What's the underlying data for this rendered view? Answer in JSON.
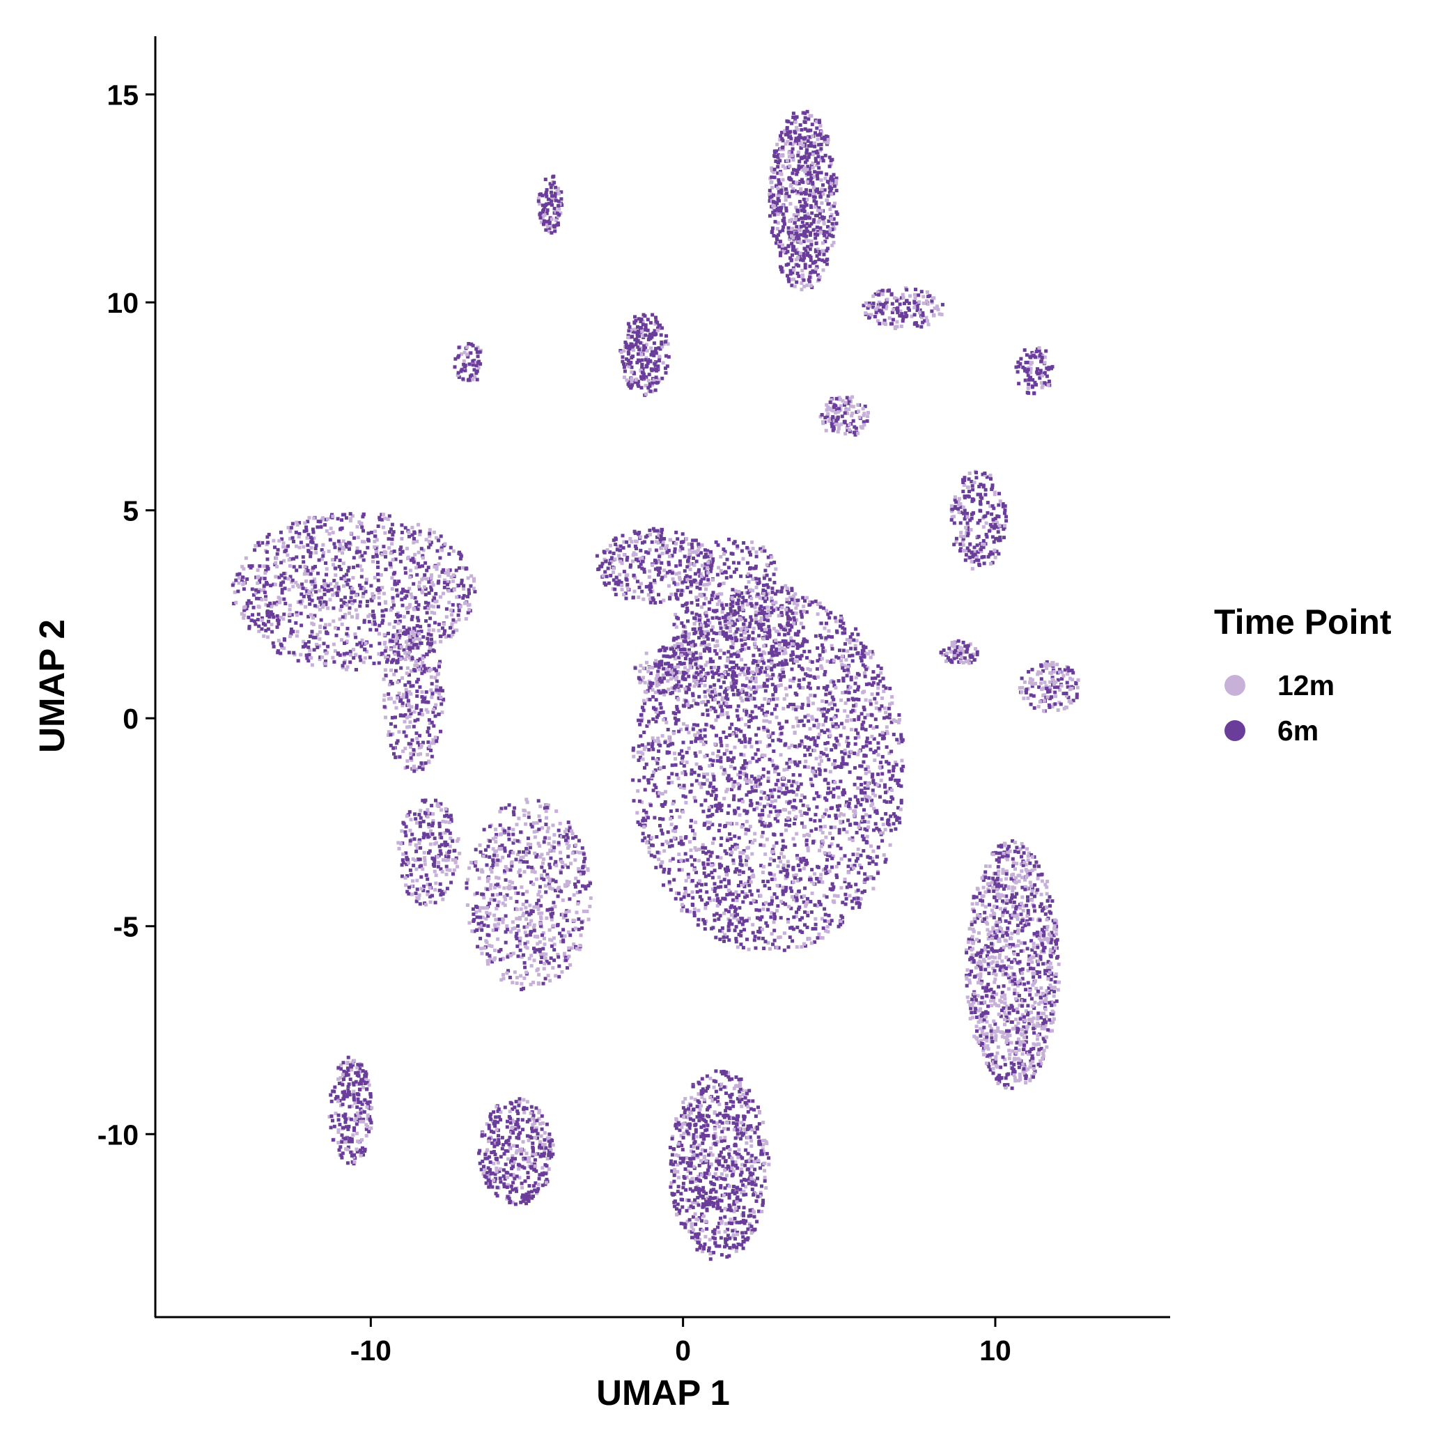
{
  "chart_data": {
    "type": "scatter",
    "title": "",
    "xlabel": "UMAP 1",
    "ylabel": "UMAP 2",
    "xlim": [
      -16.9,
      15.6
    ],
    "ylim": [
      -14.4,
      16.4
    ],
    "x_ticks": [
      -10,
      0,
      10
    ],
    "x_tick_labels": [
      "-10",
      "0",
      "10"
    ],
    "y_ticks": [
      -10,
      -5,
      0,
      5,
      10,
      15
    ],
    "y_tick_labels": [
      "-10",
      "-5",
      "0",
      "5",
      "10",
      "15"
    ],
    "grid": false,
    "legend": {
      "title": "Time Point",
      "placement": "right",
      "entries": [
        {
          "label": "12m",
          "color": "#c7b1d9"
        },
        {
          "label": "6m",
          "color": "#6a3d9a"
        }
      ]
    },
    "series": [
      {
        "name": "12m",
        "color": "#c7b1d9"
      },
      {
        "name": "6m",
        "color": "#6a3d9a"
      }
    ],
    "clusters": [
      {
        "center": [
          2.7,
          -1.2
        ],
        "radius": [
          4.4,
          4.4
        ],
        "points": 2600,
        "share_12m": 0.32
      },
      {
        "center": [
          1.6,
          2.4
        ],
        "radius": [
          2.0,
          2.0
        ],
        "points": 500,
        "share_12m": 0.3
      },
      {
        "center": [
          -1.0,
          3.7
        ],
        "radius": [
          1.9,
          0.9
        ],
        "points": 320,
        "share_12m": 0.35
      },
      {
        "center": [
          -10.6,
          3.1
        ],
        "radius": [
          3.9,
          1.9
        ],
        "points": 1100,
        "share_12m": 0.4
      },
      {
        "center": [
          -8.7,
          0.5
        ],
        "radius": [
          1.0,
          1.8
        ],
        "points": 300,
        "share_12m": 0.4
      },
      {
        "center": [
          3.8,
          12.5
        ],
        "radius": [
          1.1,
          2.2
        ],
        "points": 700,
        "share_12m": 0.28
      },
      {
        "center": [
          7.0,
          9.9
        ],
        "radius": [
          1.3,
          0.5
        ],
        "points": 160,
        "share_12m": 0.4
      },
      {
        "center": [
          10.5,
          -5.9
        ],
        "radius": [
          1.5,
          3.0
        ],
        "points": 1100,
        "share_12m": 0.5
      },
      {
        "center": [
          1.1,
          -10.7
        ],
        "radius": [
          1.6,
          2.3
        ],
        "points": 800,
        "share_12m": 0.3
      },
      {
        "center": [
          -5.4,
          -10.4
        ],
        "radius": [
          1.2,
          1.3
        ],
        "points": 380,
        "share_12m": 0.3
      },
      {
        "center": [
          -5.0,
          -4.2
        ],
        "radius": [
          2.0,
          2.3
        ],
        "points": 650,
        "share_12m": 0.55
      },
      {
        "center": [
          -8.2,
          -3.2
        ],
        "radius": [
          1.0,
          1.3
        ],
        "points": 230,
        "share_12m": 0.4
      },
      {
        "center": [
          -10.7,
          -9.4
        ],
        "radius": [
          0.7,
          1.3
        ],
        "points": 240,
        "share_12m": 0.3
      },
      {
        "center": [
          -1.3,
          8.8
        ],
        "radius": [
          0.8,
          1.0
        ],
        "points": 240,
        "share_12m": 0.2
      },
      {
        "center": [
          5.1,
          7.3
        ],
        "radius": [
          0.8,
          0.5
        ],
        "points": 120,
        "share_12m": 0.6
      },
      {
        "center": [
          9.4,
          4.8
        ],
        "radius": [
          0.9,
          1.2
        ],
        "points": 220,
        "share_12m": 0.3
      },
      {
        "center": [
          11.7,
          0.8
        ],
        "radius": [
          1.0,
          0.6
        ],
        "points": 140,
        "share_12m": 0.5
      },
      {
        "center": [
          11.2,
          8.4
        ],
        "radius": [
          0.6,
          0.6
        ],
        "points": 90,
        "share_12m": 0.3
      },
      {
        "center": [
          -0.5,
          1.2
        ],
        "radius": [
          1.1,
          0.6
        ],
        "points": 130,
        "share_12m": 0.4
      },
      {
        "center": [
          -4.3,
          12.4
        ],
        "radius": [
          0.4,
          0.7
        ],
        "points": 90,
        "share_12m": 0.3
      },
      {
        "center": [
          8.8,
          1.6
        ],
        "radius": [
          0.6,
          0.3
        ],
        "points": 70,
        "share_12m": 0.4
      },
      {
        "center": [
          -6.9,
          8.6
        ],
        "radius": [
          0.5,
          0.5
        ],
        "points": 60,
        "share_12m": 0.3
      }
    ]
  }
}
